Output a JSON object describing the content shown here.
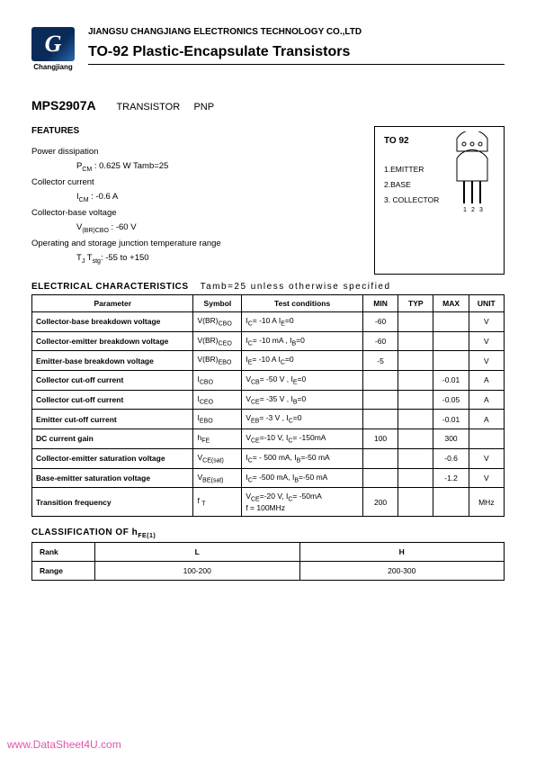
{
  "header": {
    "company": "JIANGSU CHANGJIANG ELECTRONICS TECHNOLOGY CO.,LTD",
    "title": "TO-92 Plastic-Encapsulate Transistors",
    "logo_text": "Changjiang"
  },
  "part": {
    "number": "MPS2907A",
    "type": "TRANSISTOR",
    "polarity": "PNP"
  },
  "features": {
    "title": "FEATURES",
    "items": [
      {
        "label": "Power dissipation",
        "param": "P<sub>CM</sub>  :  0.625  W  Tamb=25"
      },
      {
        "label": "Collector current",
        "param": "I<sub>CM</sub>  :  -0.6   A"
      },
      {
        "label": "Collector-base voltage",
        "param": "V<sub>(BR)CBO</sub> : -60   V"
      },
      {
        "label": "Operating and storage junction temperature range",
        "param": "T<sub>J</sub>  T<sub>stg</sub>: -55   to +150"
      }
    ]
  },
  "package": {
    "title": "TO  92",
    "pins": [
      "1.EMITTER",
      "2.BASE",
      "3. COLLECTOR"
    ],
    "pin_nums": "1 2 3"
  },
  "elec_title": "ELECTRICAL  CHARACTERISTICS",
  "elec_cond": "Tamb=25     unless  otherwise   specified",
  "table_headers": [
    "Parameter",
    "Symbol",
    "Test   conditions",
    "MIN",
    "TYP",
    "MAX",
    "UNIT"
  ],
  "rows": [
    {
      "param": "Collector-base breakdown voltage",
      "sym": "V(BR)<sub>CBO</sub>",
      "cond": "I<sub>C</sub>= -10  A   I<sub>E</sub>=0",
      "min": "-60",
      "typ": "",
      "max": "",
      "unit": "V"
    },
    {
      "param": "Collector-emitter breakdown voltage",
      "sym": "V(BR)<sub>CEO</sub>",
      "cond": "I<sub>C</sub>= -10 mA ,  I<sub>B</sub>=0",
      "min": "-60",
      "typ": "",
      "max": "",
      "unit": "V"
    },
    {
      "param": "Emitter-base breakdown voltage",
      "sym": "V(BR)<sub>EBO</sub>",
      "cond": "I<sub>E</sub>= -10  A   I<sub>C</sub>=0",
      "min": "-5",
      "typ": "",
      "max": "",
      "unit": "V"
    },
    {
      "param": "Collector cut-off current",
      "sym": "I<sub>CBO</sub>",
      "cond": "V<sub>CB</sub>= -50 V ,  I<sub>E</sub>=0",
      "min": "",
      "typ": "",
      "max": "-0.01",
      "unit": "A"
    },
    {
      "param": "Collector cut-off current",
      "sym": "I<sub>CEO</sub>",
      "cond": "V<sub>CE</sub>= -35 V ,  I<sub>B</sub>=0",
      "min": "",
      "typ": "",
      "max": "-0.05",
      "unit": "A"
    },
    {
      "param": "Emitter cut-off current",
      "sym": "I<sub>EBO</sub>",
      "cond": "V<sub>EB</sub>= -3 V ,  I<sub>C</sub>=0",
      "min": "",
      "typ": "",
      "max": "-0.01",
      "unit": "A"
    },
    {
      "param": "DC current gain",
      "sym": "h<sub>FE</sub>",
      "cond": "V<sub>CE</sub>=-10 V, I<sub>C</sub>= -150mA",
      "min": "100",
      "typ": "",
      "max": "300",
      "unit": ""
    },
    {
      "param": "Collector-emitter saturation voltage",
      "sym": "V<sub>CE(sat)</sub>",
      "cond": "I<sub>C</sub>= - 500 mA, I<sub>B</sub>=-50 mA",
      "min": "",
      "typ": "",
      "max": "-0.6",
      "unit": "V"
    },
    {
      "param": "Base-emitter saturation voltage",
      "sym": "V<sub>BE(sat)</sub>",
      "cond": "I<sub>C</sub>= -500 mA, I<sub>B</sub>=-50 mA",
      "min": "",
      "typ": "",
      "max": "-1.2",
      "unit": "V"
    },
    {
      "param": "Transition frequency",
      "sym": "f <sub>T</sub>",
      "cond": "V<sub>CE</sub>=-20 V, I<sub>C</sub>= -50mA<br>f = 100MHz",
      "min": "200",
      "typ": "",
      "max": "",
      "unit": "MHz"
    }
  ],
  "class_title": "CLASSIFICATION OF  h<sub>FE(1)</sub>",
  "class_headers": [
    "Rank",
    "L",
    "H"
  ],
  "class_row": [
    "Range",
    "100-200",
    "200-300"
  ],
  "watermark": "www.DataSheet4U.com"
}
